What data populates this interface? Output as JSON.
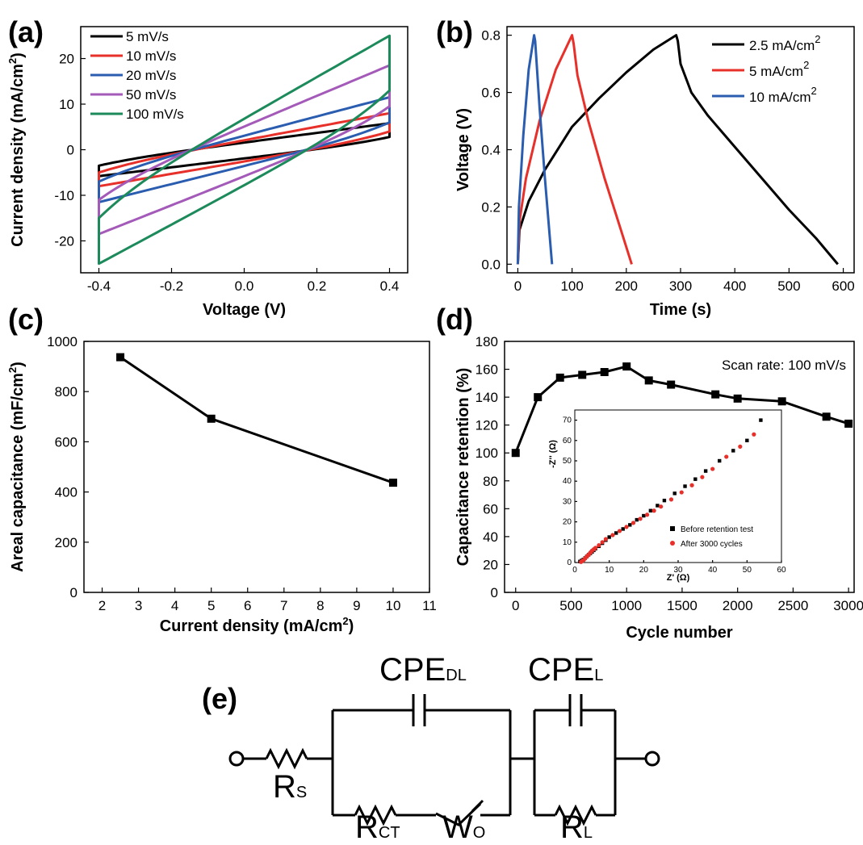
{
  "panels": {
    "a": {
      "label": "(a)"
    },
    "b": {
      "label": "(b)"
    },
    "c": {
      "label": "(c)"
    },
    "d": {
      "label": "(d)"
    },
    "e": {
      "label": "(e)"
    }
  },
  "chart_data": [
    {
      "id": "a",
      "type": "line",
      "xlabel": "Voltage (V)",
      "ylabel": "Current density (mA/cm2)",
      "xlim": [
        -0.45,
        0.45
      ],
      "ylim": [
        -27,
        27
      ],
      "xticks": [
        -0.4,
        -0.2,
        0.0,
        0.2,
        0.4
      ],
      "yticks": [
        -20,
        -10,
        0,
        10,
        20
      ],
      "legend_position": "top-left",
      "series": [
        {
          "name": "5 mV/s",
          "color": "#000000",
          "kind": "cv",
          "params": {
            "i_top_left": -3.5,
            "i_top_right": 5.8,
            "i_bot_right": 2.8,
            "i_bot_left": -5.8
          }
        },
        {
          "name": "10 mV/s",
          "color": "#e8302a",
          "kind": "cv",
          "params": {
            "i_top_left": -5.0,
            "i_top_right": 8.0,
            "i_bot_right": 4.0,
            "i_bot_left": -8.0
          }
        },
        {
          "name": "20 mV/s",
          "color": "#2a5db0",
          "kind": "cv",
          "params": {
            "i_top_left": -7.0,
            "i_top_right": 11.5,
            "i_bot_right": 6.0,
            "i_bot_left": -11.5
          }
        },
        {
          "name": "50 mV/s",
          "color": "#a45ab8",
          "kind": "cv",
          "params": {
            "i_top_left": -11.0,
            "i_top_right": 18.5,
            "i_bot_right": 9.5,
            "i_bot_left": -18.5
          }
        },
        {
          "name": "100 mV/s",
          "color": "#1c8a5a",
          "kind": "cv",
          "params": {
            "i_top_left": -15.0,
            "i_top_right": 25.0,
            "i_bot_right": 13.0,
            "i_bot_left": -25.0
          }
        }
      ]
    },
    {
      "id": "b",
      "type": "line",
      "xlabel": "Time (s)",
      "ylabel": "Voltage (V)",
      "xlim": [
        -20,
        620
      ],
      "ylim": [
        -0.03,
        0.83
      ],
      "xticks": [
        0,
        100,
        200,
        300,
        400,
        500,
        600
      ],
      "yticks": [
        0.0,
        0.2,
        0.4,
        0.6,
        0.8
      ],
      "legend_position": "top-right",
      "series": [
        {
          "name": "2.5 mA/cm2",
          "color": "#000000",
          "x": [
            0,
            3,
            20,
            50,
            100,
            150,
            200,
            250,
            292,
            295,
            300,
            320,
            350,
            400,
            450,
            500,
            550,
            590
          ],
          "y": [
            0.0,
            0.12,
            0.22,
            0.33,
            0.48,
            0.58,
            0.67,
            0.75,
            0.8,
            0.78,
            0.7,
            0.6,
            0.52,
            0.41,
            0.3,
            0.19,
            0.09,
            0.0
          ]
        },
        {
          "name": "5 mA/cm2",
          "color": "#e8302a",
          "x": [
            0,
            3,
            15,
            40,
            70,
            100,
            103,
            110,
            130,
            160,
            190,
            210
          ],
          "y": [
            0.0,
            0.15,
            0.3,
            0.5,
            0.68,
            0.8,
            0.77,
            0.66,
            0.5,
            0.3,
            0.12,
            0.0
          ]
        },
        {
          "name": "10 mA/cm2",
          "color": "#2a5db0",
          "x": [
            0,
            2,
            10,
            20,
            30,
            32,
            40,
            50,
            63
          ],
          "y": [
            0.0,
            0.2,
            0.45,
            0.68,
            0.8,
            0.78,
            0.55,
            0.3,
            0.0
          ]
        }
      ]
    },
    {
      "id": "c",
      "type": "line",
      "xlabel": "Current density (mA/cm2)",
      "ylabel": "Areal capacitance (mF/cm2)",
      "xlim": [
        1.5,
        11
      ],
      "ylim": [
        0,
        1000
      ],
      "xticks": [
        2,
        3,
        4,
        5,
        6,
        7,
        8,
        9,
        10,
        11
      ],
      "yticks": [
        0,
        200,
        400,
        600,
        800,
        1000
      ],
      "series": [
        {
          "name": "",
          "color": "#000000",
          "x": [
            2.5,
            5,
            10
          ],
          "y": [
            937,
            692,
            437
          ]
        }
      ]
    },
    {
      "id": "d",
      "type": "line",
      "xlabel": "Cycle number",
      "ylabel": "Capacitance retention (%)",
      "xlim": [
        -100,
        3050
      ],
      "ylim": [
        0,
        180
      ],
      "xticks": [
        0,
        500,
        1000,
        1500,
        2000,
        2500,
        3000
      ],
      "yticks": [
        0,
        20,
        40,
        60,
        80,
        100,
        120,
        140,
        160,
        180
      ],
      "annotation": "Scan rate: 100 mV/s",
      "series": [
        {
          "name": "",
          "color": "#000000",
          "x": [
            0,
            200,
            400,
            600,
            800,
            1000,
            1200,
            1400,
            1800,
            2000,
            2400,
            2800,
            3000
          ],
          "y": [
            100,
            140,
            154,
            156,
            158,
            162,
            152,
            149,
            142,
            139,
            137,
            126,
            121
          ]
        }
      ],
      "inset": {
        "type": "scatter",
        "xlabel": "Z' (Ω)",
        "ylabel": "-Z'' (Ω)",
        "xlim": [
          0,
          60
        ],
        "ylim": [
          0,
          75
        ],
        "xticks": [
          0,
          10,
          20,
          30,
          40,
          50,
          60
        ],
        "yticks": [
          0,
          10,
          20,
          30,
          40,
          50,
          60,
          70
        ],
        "series": [
          {
            "name": "Before retention test",
            "color": "#000000",
            "x": [
              1.5,
              2,
              2.5,
              3,
              3.5,
              4,
              4.5,
              5,
              5.5,
              6,
              7,
              8,
              9,
              10,
              12,
              14,
              16,
              18,
              20,
              22,
              24,
              26,
              29,
              32,
              35,
              38,
              42,
              46,
              50,
              54
            ],
            "y": [
              0.5,
              1,
              1.5,
              2.2,
              3,
              3.8,
              4.5,
              5.2,
              6,
              6.8,
              8,
              9.5,
              11,
              12.5,
              14.5,
              16.5,
              18.5,
              21,
              23,
              25.5,
              28,
              30.5,
              34,
              37.5,
              41,
              45,
              50,
              55,
              60,
              70
            ]
          },
          {
            "name": "After 3000 cycles",
            "color": "#e8302a",
            "x": [
              1.8,
              2.2,
              2.6,
              3,
              3.4,
              3.8,
              4.2,
              4.6,
              5,
              5.5,
              6,
              7,
              8,
              9,
              11,
              13,
              15,
              17,
              19,
              21,
              23,
              25,
              28,
              31,
              34,
              37,
              40,
              44,
              48,
              52
            ],
            "y": [
              0.3,
              0.8,
              1.3,
              2,
              2.8,
              3.5,
              4.2,
              5,
              5.8,
              6.5,
              7.2,
              8.5,
              10,
              11.5,
              13.5,
              15.5,
              17.5,
              19.5,
              21.5,
              23.5,
              25.5,
              27.5,
              31,
              34.5,
              38,
              42,
              46,
              52,
              57,
              63
            ]
          }
        ]
      }
    }
  ],
  "circuit": {
    "labels": {
      "rs": "R",
      "rs_sub": "S",
      "cpe_dl": "CPE",
      "cpe_dl_sub": "DL",
      "rct": "R",
      "rct_sub": "CT",
      "wo": "W",
      "wo_sub": "O",
      "cpe_l": "CPE",
      "cpe_l_sub": "L",
      "rl": "R",
      "rl_sub": "L"
    }
  }
}
